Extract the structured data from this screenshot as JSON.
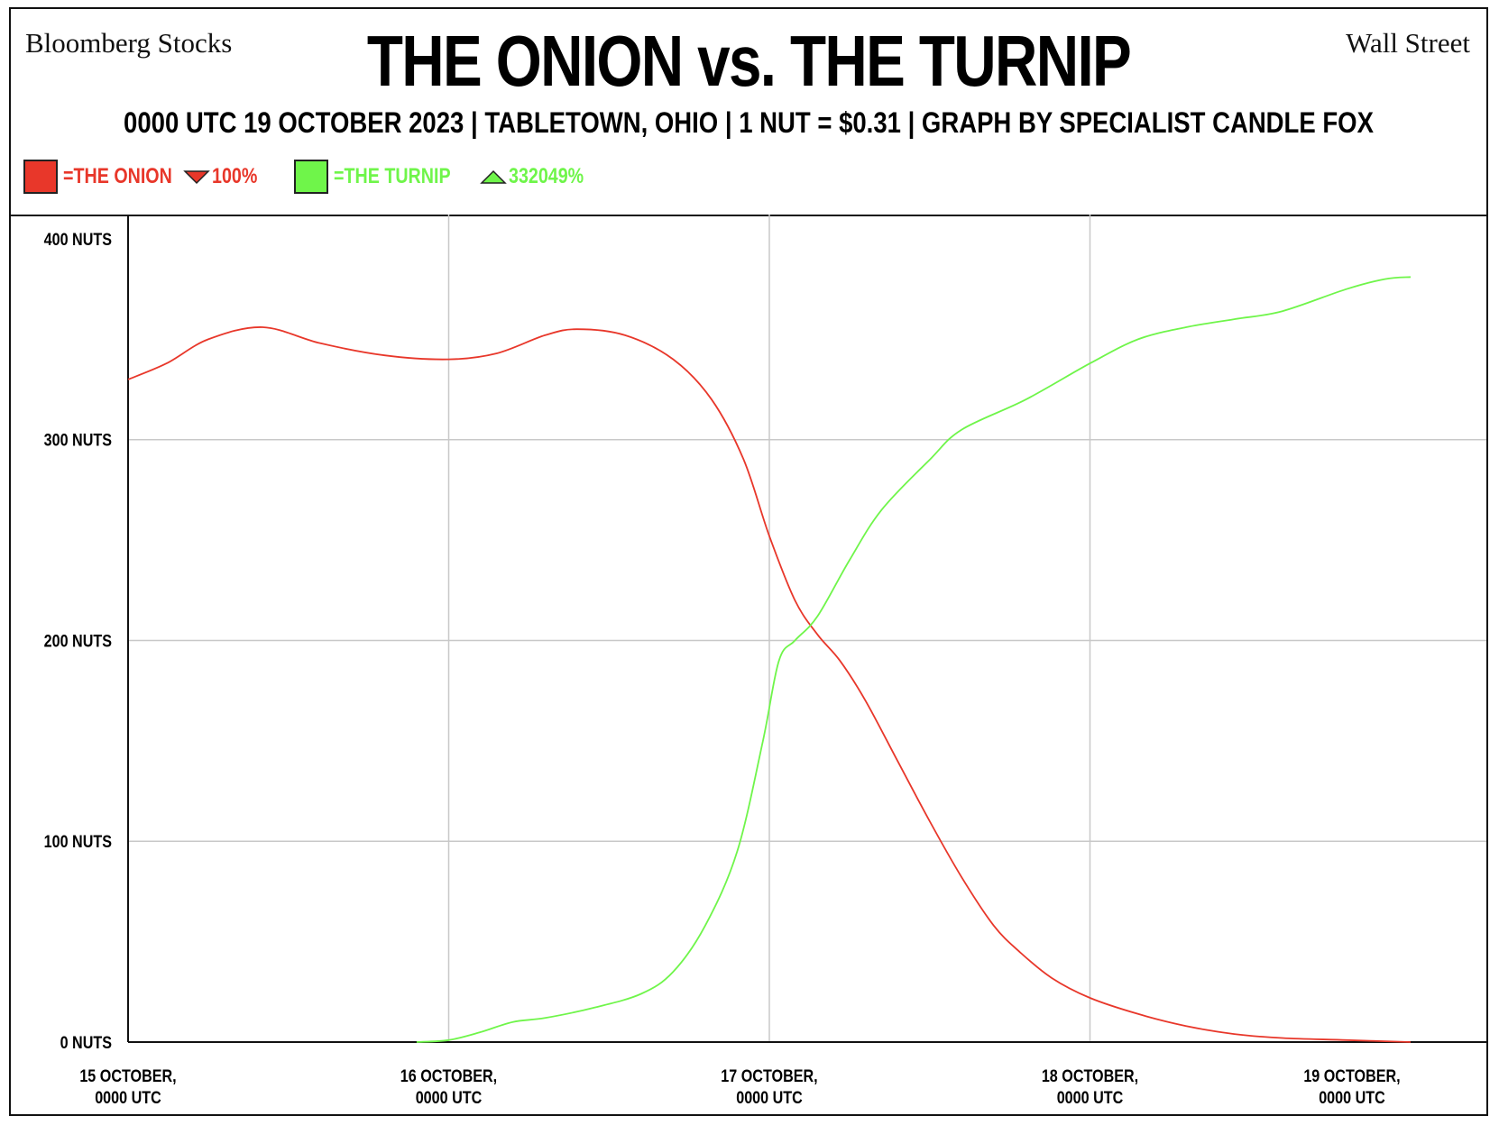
{
  "header": {
    "left_corner": "Bloomberg Stocks",
    "right_corner": "Wall Street",
    "title": "THE ONION vs. THE TURNIP",
    "subtitle": "0000 UTC 19 OCTOBER 2023 | TABLETOWN, OHIO | 1 NUT = $0.31 | GRAPH BY SPECIALIST CANDLE FOX"
  },
  "legend": [
    {
      "label": "=THE ONION",
      "change": "100%",
      "direction": "down",
      "color": "#e8372a"
    },
    {
      "label": "=THE TURNIP",
      "change": "332049%",
      "direction": "up",
      "color": "#6ff54a"
    }
  ],
  "chart_data": {
    "type": "line",
    "title": "THE ONION vs. THE TURNIP",
    "xlabel": "",
    "ylabel": "",
    "xlim": [
      0,
      4
    ],
    "ylim": [
      0,
      400
    ],
    "grid": true,
    "y_ticks": [
      {
        "value": 0,
        "label": "0 NUTS"
      },
      {
        "value": 100,
        "label": "100 NUTS"
      },
      {
        "value": 200,
        "label": "200 NUTS"
      },
      {
        "value": 300,
        "label": "300 NUTS"
      },
      {
        "value": 400,
        "label": "400 NUTS"
      }
    ],
    "x_ticks": [
      {
        "value": 0,
        "lines": [
          "15 OCTOBER,",
          "0000 UTC"
        ]
      },
      {
        "value": 1,
        "lines": [
          "16 OCTOBER,",
          "0000 UTC"
        ]
      },
      {
        "value": 2,
        "lines": [
          "17  OCTOBER,",
          "0000 UTC"
        ]
      },
      {
        "value": 3,
        "lines": [
          "18  OCTOBER,",
          "0000 UTC"
        ]
      },
      {
        "value": 4,
        "lines": [
          "19  OCTOBER,",
          "0000 UTC"
        ]
      }
    ],
    "series": [
      {
        "name": "THE ONION",
        "color": "#e8372a",
        "points": [
          [
            0.0,
            330
          ],
          [
            0.12,
            338
          ],
          [
            0.25,
            350
          ],
          [
            0.42,
            356
          ],
          [
            0.6,
            348
          ],
          [
            0.8,
            342
          ],
          [
            1.0,
            340
          ],
          [
            1.15,
            343
          ],
          [
            1.3,
            352
          ],
          [
            1.4,
            355
          ],
          [
            1.55,
            352
          ],
          [
            1.7,
            340
          ],
          [
            1.82,
            320
          ],
          [
            1.92,
            290
          ],
          [
            2.0,
            252
          ],
          [
            2.08,
            220
          ],
          [
            2.15,
            203
          ],
          [
            2.22,
            190
          ],
          [
            2.3,
            170
          ],
          [
            2.4,
            140
          ],
          [
            2.5,
            110
          ],
          [
            2.6,
            82
          ],
          [
            2.7,
            58
          ],
          [
            2.78,
            45
          ],
          [
            2.88,
            32
          ],
          [
            3.0,
            22
          ],
          [
            3.15,
            14
          ],
          [
            3.3,
            8
          ],
          [
            3.45,
            4
          ],
          [
            3.6,
            2
          ],
          [
            3.8,
            1
          ],
          [
            4.0,
            0
          ]
        ]
      },
      {
        "name": "THE TURNIP",
        "color": "#6ff54a",
        "points": [
          [
            0.9,
            0
          ],
          [
            1.0,
            1
          ],
          [
            1.1,
            5
          ],
          [
            1.2,
            10
          ],
          [
            1.3,
            12
          ],
          [
            1.45,
            17
          ],
          [
            1.6,
            24
          ],
          [
            1.7,
            35
          ],
          [
            1.8,
            58
          ],
          [
            1.9,
            95
          ],
          [
            1.98,
            150
          ],
          [
            2.03,
            190
          ],
          [
            2.08,
            200
          ],
          [
            2.15,
            212
          ],
          [
            2.25,
            240
          ],
          [
            2.35,
            265
          ],
          [
            2.5,
            290
          ],
          [
            2.6,
            305
          ],
          [
            2.8,
            320
          ],
          [
            3.0,
            338
          ],
          [
            3.15,
            350
          ],
          [
            3.3,
            356
          ],
          [
            3.45,
            360
          ],
          [
            3.6,
            364
          ],
          [
            3.8,
            375
          ],
          [
            3.92,
            380
          ],
          [
            4.0,
            381
          ]
        ]
      }
    ]
  }
}
